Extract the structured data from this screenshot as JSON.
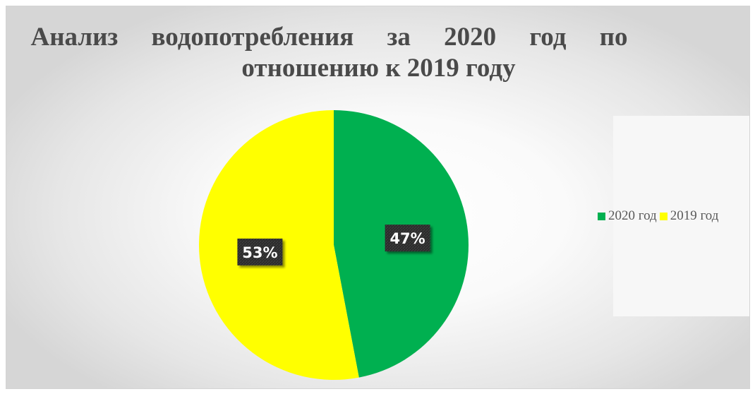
{
  "chart_data": {
    "type": "pie",
    "title": "Анализ водопотребления за 2020 год по отношению к 2019 году",
    "title_lines": [
      "Анализ водопотребления за 2020 год по",
      "отношению к 2019 году"
    ],
    "slices": [
      {
        "label": "2020 год",
        "value": 47,
        "display": "47%",
        "color": "#00b050"
      },
      {
        "label": "2019 год",
        "value": 53,
        "display": "53%",
        "color": "#ffff00"
      }
    ],
    "start": "12 o'clock",
    "direction": "clockwise",
    "legend_position": "right",
    "data_label_style": "dark box, white bold text"
  },
  "legend": [
    {
      "label": "2020 год",
      "color": "#00b050"
    },
    {
      "label": "2019 год",
      "color": "#ffff00"
    }
  ]
}
